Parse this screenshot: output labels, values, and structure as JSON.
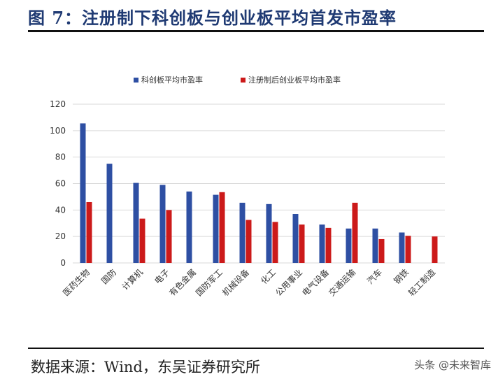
{
  "figure_title": "图 7：注册制下科创板与创业板平均首发市盈率",
  "source": "数据来源：Wind，东吴证券研究所",
  "watermark": "头条 @未来智库",
  "colors": {
    "series_1": "#2e4fa3",
    "series_2": "#cc1a1a",
    "grid": "#d9d9d9",
    "title": "#1f3a73"
  },
  "chart_data": {
    "type": "bar",
    "categories": [
      "医药生物",
      "国防",
      "计算机",
      "电子",
      "有色金属",
      "国防军工",
      "机械设备",
      "化工",
      "公用事业",
      "电气设备",
      "交通运输",
      "汽车",
      "钢铁",
      "轻工制造"
    ],
    "series": [
      {
        "name": "科创板平均市盈率",
        "values": [
          105.5,
          75,
          60.5,
          59,
          54,
          51.5,
          45.5,
          44.5,
          37,
          29,
          26,
          26,
          23,
          null
        ]
      },
      {
        "name": "注册制后创业板平均市盈率",
        "values": [
          46,
          null,
          33.5,
          40,
          null,
          53.5,
          32.5,
          31,
          29,
          26.5,
          45.5,
          18,
          20.5,
          20
        ]
      }
    ],
    "ylim": [
      0,
      120
    ],
    "yticks": [
      0,
      20,
      40,
      60,
      80,
      100,
      120
    ],
    "grid": true,
    "legend_position": "top-center"
  }
}
